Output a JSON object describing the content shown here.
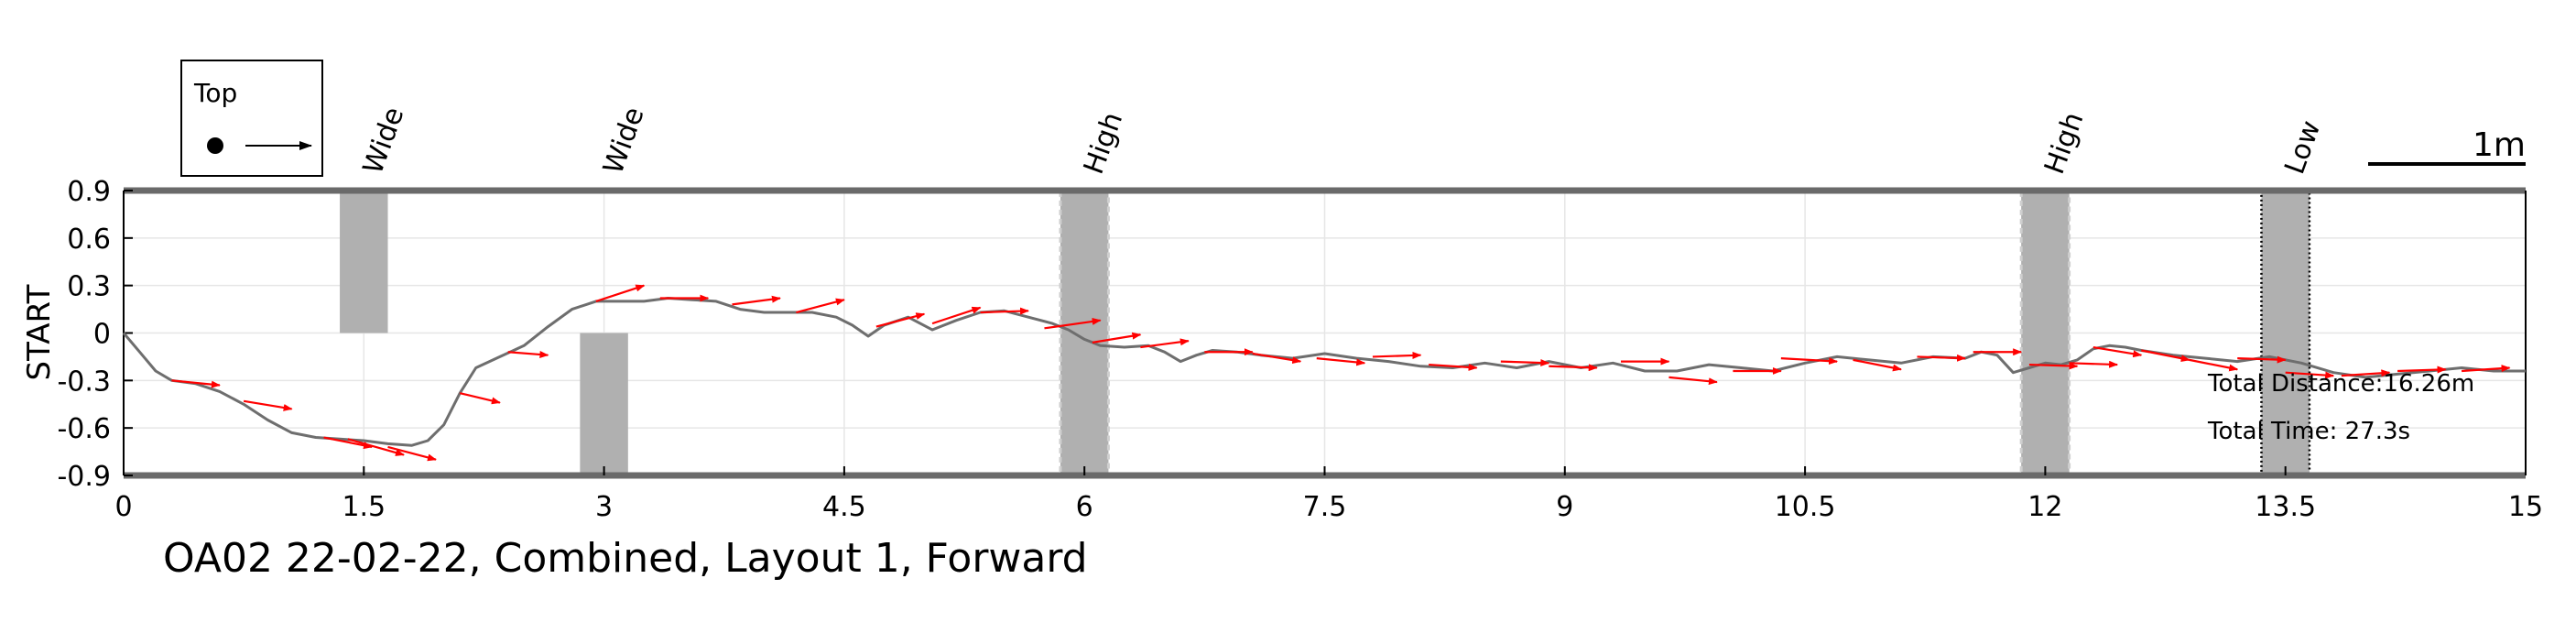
{
  "chart_data": {
    "type": "line",
    "title": "OA02 22-02-22, Combined, Layout 1, Forward",
    "xlabel": "",
    "ylabel": "START",
    "xlim": [
      0,
      15
    ],
    "ylim": [
      -0.9,
      0.9
    ],
    "x_ticks": [
      "0",
      "1.5",
      "3",
      "4.5",
      "6",
      "7.5",
      "9",
      "10.5",
      "12",
      "13.5",
      "15"
    ],
    "y_ticks": [
      "0.9",
      "0.6",
      "0.3",
      "0",
      "-0.3",
      "-0.6",
      "-0.9"
    ],
    "grid": true,
    "legend": {
      "title": "Top",
      "placement": "top-left"
    },
    "scale_bar_label": "1m",
    "annotations": [
      "Total Distance:16.26m",
      "Total Time: 27.3s"
    ],
    "obstacles": [
      {
        "label": "Wide",
        "x": [
          1.35,
          1.65
        ],
        "y": [
          0,
          0.9
        ],
        "style": "solid"
      },
      {
        "label": "Wide",
        "x": [
          2.85,
          3.15
        ],
        "y": [
          -0.9,
          0
        ],
        "style": "solid"
      },
      {
        "label": "High",
        "x": [
          5.85,
          6.15
        ],
        "y": [
          -0.9,
          0.9
        ],
        "style": "dashed"
      },
      {
        "label": "High",
        "x": [
          11.85,
          12.15
        ],
        "y": [
          -0.9,
          0.9
        ],
        "style": "dashed"
      },
      {
        "label": "Low",
        "x": [
          13.35,
          13.65
        ],
        "y": [
          -0.9,
          0.9
        ],
        "style": "dotted"
      }
    ],
    "series": [
      {
        "path": {
          "x": [
            0,
            0.1,
            0.2,
            0.3,
            0.45,
            0.6,
            0.75,
            0.9,
            1.05,
            1.2,
            1.35,
            1.5,
            1.65,
            1.8,
            1.9,
            2.0,
            2.1,
            2.2,
            2.35,
            2.5,
            2.65,
            2.8,
            2.95,
            3.1,
            3.25,
            3.4,
            3.55,
            3.7,
            3.85,
            4.0,
            4.15,
            4.3,
            4.45,
            4.55,
            4.65,
            4.75,
            4.9,
            5.05,
            5.2,
            5.35,
            5.5,
            5.65,
            5.8,
            5.9,
            6.0,
            6.1,
            6.25,
            6.4,
            6.5,
            6.6,
            6.7,
            6.8,
            6.95,
            7.1,
            7.3,
            7.5,
            7.7,
            7.9,
            8.1,
            8.3,
            8.5,
            8.7,
            8.9,
            9.1,
            9.3,
            9.5,
            9.7,
            9.9,
            10.1,
            10.3,
            10.5,
            10.7,
            10.9,
            11.1,
            11.3,
            11.5,
            11.6,
            11.7,
            11.8,
            11.9,
            12.0,
            12.1,
            12.2,
            12.3,
            12.4,
            12.5,
            12.6,
            12.8,
            13.0,
            13.2,
            13.4,
            13.6,
            13.8,
            14.0,
            14.2,
            14.4,
            14.6,
            14.8,
            15.0
          ],
          "y": [
            0,
            -0.12,
            -0.24,
            -0.3,
            -0.32,
            -0.37,
            -0.45,
            -0.55,
            -0.63,
            -0.66,
            -0.67,
            -0.68,
            -0.7,
            -0.71,
            -0.68,
            -0.58,
            -0.38,
            -0.22,
            -0.15,
            -0.08,
            0.04,
            0.15,
            0.2,
            0.2,
            0.2,
            0.22,
            0.21,
            0.2,
            0.15,
            0.13,
            0.13,
            0.13,
            0.1,
            0.05,
            -0.02,
            0.05,
            0.1,
            0.02,
            0.08,
            0.13,
            0.14,
            0.1,
            0.06,
            0.02,
            -0.04,
            -0.08,
            -0.09,
            -0.08,
            -0.12,
            -0.18,
            -0.14,
            -0.11,
            -0.12,
            -0.14,
            -0.16,
            -0.13,
            -0.16,
            -0.18,
            -0.21,
            -0.22,
            -0.19,
            -0.22,
            -0.18,
            -0.22,
            -0.19,
            -0.24,
            -0.24,
            -0.2,
            -0.22,
            -0.24,
            -0.19,
            -0.15,
            -0.17,
            -0.19,
            -0.15,
            -0.16,
            -0.12,
            -0.14,
            -0.25,
            -0.22,
            -0.19,
            -0.2,
            -0.17,
            -0.1,
            -0.08,
            -0.09,
            -0.11,
            -0.14,
            -0.16,
            -0.18,
            -0.15,
            -0.19,
            -0.25,
            -0.28,
            -0.26,
            -0.24,
            -0.22,
            -0.24,
            -0.24
          ]
        },
        "arrows": [
          {
            "x": 0.3,
            "y": -0.3,
            "dx": 0.3,
            "dy": -0.03
          },
          {
            "x": 0.75,
            "y": -0.43,
            "dx": 0.3,
            "dy": -0.05
          },
          {
            "x": 1.25,
            "y": -0.66,
            "dx": 0.3,
            "dy": -0.06
          },
          {
            "x": 1.4,
            "y": -0.67,
            "dx": 0.35,
            "dy": -0.1
          },
          {
            "x": 1.65,
            "y": -0.72,
            "dx": 0.3,
            "dy": -0.08
          },
          {
            "x": 2.1,
            "y": -0.38,
            "dx": 0.25,
            "dy": -0.06
          },
          {
            "x": 2.4,
            "y": -0.12,
            "dx": 0.25,
            "dy": -0.02
          },
          {
            "x": 2.95,
            "y": 0.2,
            "dx": 0.3,
            "dy": 0.1
          },
          {
            "x": 3.35,
            "y": 0.22,
            "dx": 0.3,
            "dy": 0.0
          },
          {
            "x": 3.8,
            "y": 0.18,
            "dx": 0.3,
            "dy": 0.04
          },
          {
            "x": 4.2,
            "y": 0.13,
            "dx": 0.3,
            "dy": 0.08
          },
          {
            "x": 4.7,
            "y": 0.04,
            "dx": 0.3,
            "dy": 0.08
          },
          {
            "x": 5.05,
            "y": 0.06,
            "dx": 0.3,
            "dy": 0.1
          },
          {
            "x": 5.35,
            "y": 0.13,
            "dx": 0.3,
            "dy": 0.01
          },
          {
            "x": 5.75,
            "y": 0.03,
            "dx": 0.35,
            "dy": 0.05
          },
          {
            "x": 6.05,
            "y": -0.06,
            "dx": 0.3,
            "dy": 0.05
          },
          {
            "x": 6.35,
            "y": -0.09,
            "dx": 0.3,
            "dy": 0.04
          },
          {
            "x": 6.75,
            "y": -0.12,
            "dx": 0.3,
            "dy": 0.0
          },
          {
            "x": 7.05,
            "y": -0.13,
            "dx": 0.3,
            "dy": -0.05
          },
          {
            "x": 7.45,
            "y": -0.16,
            "dx": 0.3,
            "dy": -0.03
          },
          {
            "x": 7.8,
            "y": -0.15,
            "dx": 0.3,
            "dy": 0.01
          },
          {
            "x": 8.15,
            "y": -0.2,
            "dx": 0.3,
            "dy": -0.02
          },
          {
            "x": 8.6,
            "y": -0.18,
            "dx": 0.3,
            "dy": -0.01
          },
          {
            "x": 8.9,
            "y": -0.21,
            "dx": 0.3,
            "dy": -0.01
          },
          {
            "x": 9.35,
            "y": -0.18,
            "dx": 0.3,
            "dy": 0.0
          },
          {
            "x": 9.65,
            "y": -0.28,
            "dx": 0.3,
            "dy": -0.03
          },
          {
            "x": 10.05,
            "y": -0.24,
            "dx": 0.3,
            "dy": 0.0
          },
          {
            "x": 10.35,
            "y": -0.16,
            "dx": 0.35,
            "dy": -0.02
          },
          {
            "x": 10.8,
            "y": -0.17,
            "dx": 0.3,
            "dy": -0.06
          },
          {
            "x": 11.2,
            "y": -0.15,
            "dx": 0.3,
            "dy": -0.01
          },
          {
            "x": 11.55,
            "y": -0.12,
            "dx": 0.3,
            "dy": 0.0
          },
          {
            "x": 11.9,
            "y": -0.2,
            "dx": 0.3,
            "dy": -0.01
          },
          {
            "x": 12.15,
            "y": -0.19,
            "dx": 0.3,
            "dy": -0.01
          },
          {
            "x": 12.3,
            "y": -0.09,
            "dx": 0.3,
            "dy": -0.05
          },
          {
            "x": 12.6,
            "y": -0.11,
            "dx": 0.3,
            "dy": -0.06
          },
          {
            "x": 12.9,
            "y": -0.17,
            "dx": 0.3,
            "dy": -0.06
          },
          {
            "x": 13.2,
            "y": -0.16,
            "dx": 0.3,
            "dy": -0.01
          },
          {
            "x": 13.5,
            "y": -0.25,
            "dx": 0.3,
            "dy": -0.02
          },
          {
            "x": 13.85,
            "y": -0.27,
            "dx": 0.3,
            "dy": 0.02
          },
          {
            "x": 14.2,
            "y": -0.24,
            "dx": 0.3,
            "dy": 0.01
          },
          {
            "x": 14.6,
            "y": -0.24,
            "dx": 0.3,
            "dy": 0.02
          }
        ]
      }
    ],
    "colors": {
      "path": "#6e6e6e",
      "arrow": "#ff0000",
      "obstacle": "#b0b0b0",
      "grid": "#e6e6e6",
      "boundary": "#6a6a6a"
    }
  }
}
